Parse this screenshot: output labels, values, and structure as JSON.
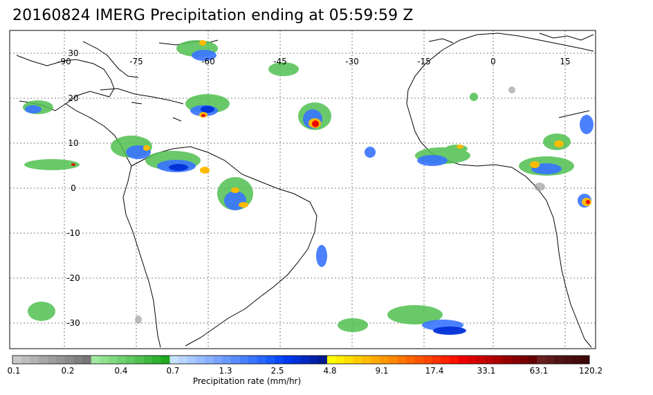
{
  "title": "20160824 IMERG Precipitation ending at 05:59:59 Z",
  "map": {
    "lon_labels": [
      "-90",
      "-75",
      "-60",
      "-45",
      "-30",
      "-15",
      "0",
      "15"
    ],
    "lat_labels": [
      "30",
      "20",
      "10",
      "0",
      "-10",
      "-20",
      "-30"
    ]
  },
  "colorbar": {
    "tick_labels": [
      "0.1",
      "0.2",
      "0.4",
      "0.7",
      "1.3",
      "2.5",
      "4.8",
      "9.1",
      "17.4",
      "33.1",
      "63.1",
      "120.2"
    ],
    "colors": [
      "#c8c8c8",
      "#bdbdbd",
      "#b3b3b3",
      "#a8a8a8",
      "#9e9e9e",
      "#949494",
      "#8a8a8a",
      "#808080",
      "#767676",
      "#a0e8a0",
      "#90e090",
      "#80d880",
      "#70d070",
      "#60c860",
      "#50c050",
      "#40b840",
      "#30b030",
      "#20a820",
      "#c8e0ff",
      "#b8d4ff",
      "#a8c8ff",
      "#98bcff",
      "#88b0ff",
      "#78a4ff",
      "#6898ff",
      "#588cff",
      "#4880ff",
      "#3874ff",
      "#2868ff",
      "#1858ff",
      "#0848ff",
      "#0038f0",
      "#0030d8",
      "#0028c0",
      "#0020a8",
      "#001890",
      "#ffff00",
      "#ffee00",
      "#ffdd00",
      "#ffcc00",
      "#ffbb00",
      "#ffaa00",
      "#ff9900",
      "#ff8800",
      "#ff7700",
      "#ff6600",
      "#ff5500",
      "#ff4400",
      "#ff3300",
      "#ff2200",
      "#ff1100",
      "#ee0000",
      "#dd0000",
      "#cc0000",
      "#bb0000",
      "#aa0000",
      "#990000",
      "#880000",
      "#770000",
      "#660000",
      "#6b2020",
      "#5e1a1a",
      "#501414",
      "#4a1010",
      "#440c0c",
      "#3e0808"
    ],
    "title": "Precipitation rate (mm/hr)"
  }
}
